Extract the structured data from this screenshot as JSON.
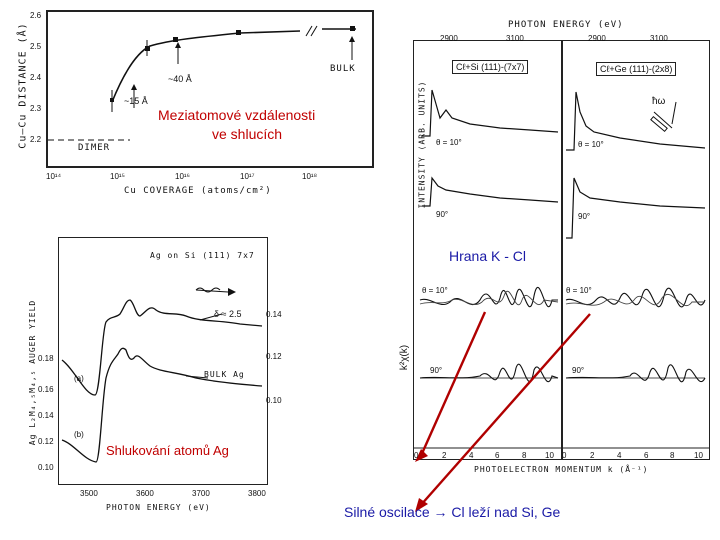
{
  "fig1": {
    "y_axis_label": "Cu–Cu DISTANCE (Å)",
    "x_axis_label": "Cu COVERAGE (atoms/cm²)",
    "y_ticks": [
      "2.6",
      "2.5",
      "2.4",
      "2.3",
      "2.2"
    ],
    "x_ticks": [
      "10¹⁴",
      "10¹⁵",
      "10¹⁶",
      "10¹⁷",
      "10¹⁸"
    ],
    "annotations": {
      "a15": "~15 Å",
      "a40": "~40 Å",
      "dimer": "DIMER",
      "bulk": "BULK"
    },
    "caption": [
      "Meziatomové vzdálenosti",
      "ve shlucích"
    ]
  },
  "fig2": {
    "title": "Ag on Si (111) 7x7",
    "y_axis_label": "Ag L₂M₄,₅M₄,₅ AUGER YIELD",
    "x_axis_label": "PHOTON ENERGY (eV)",
    "x_ticks": [
      "3500",
      "3600",
      "3700",
      "3800"
    ],
    "y_ticks_left": [
      "0.18",
      "0.16",
      "0.14",
      "0.12",
      "0.10"
    ],
    "y_ticks_right": [
      "0.14",
      "0.12",
      "0.10"
    ],
    "labels": {
      "delta": "δ ≈ 2.5",
      "bulk": "BULK Ag",
      "a": "(a)",
      "b": "(b)"
    },
    "caption": "Shlukování atomů Ag"
  },
  "fig3": {
    "top_axis_label": "PHOTON ENERGY (eV)",
    "top_ticks": [
      "2900",
      "3100",
      "2900",
      "3100"
    ],
    "panel_left": "Cℓ+Si (111)-(7x7)",
    "panel_right": "Cℓ+Ge (111)-(2x8)",
    "y_axis_label_top": "INTENSITY (ARB. UNITS)",
    "y_axis_label_bottom": "k²χ(k)",
    "x_axis_label": "PHOTOELECTRON MOMENTUM k (Å⁻¹)",
    "x_ticks": [
      "0",
      "2",
      "4",
      "6",
      "8",
      "10",
      "0",
      "2",
      "4",
      "6",
      "8",
      "10"
    ],
    "angles": {
      "t1": "θ = 10°",
      "t2": "θ = 10°",
      "t3": "90°",
      "t4": "90°",
      "b1": "θ = 10°",
      "b2": "θ = 10°",
      "b3": "90°",
      "b4": "90°"
    },
    "hw": "ħω",
    "caption_edge": "Hrana K - Cl",
    "caption_bottom": "Silné oscilace → Cl leží nad Si, Ge"
  }
}
